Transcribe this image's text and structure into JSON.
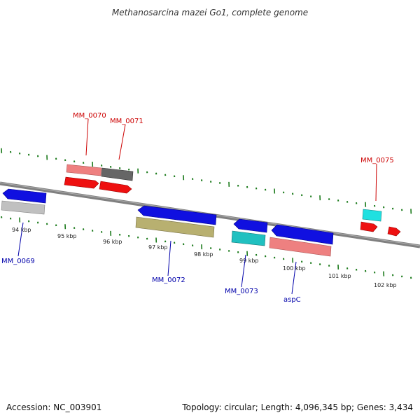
{
  "title": "Methanosarcina mazei Go1, complete genome",
  "footer": {
    "accession": "Accession: NC_003901",
    "summary": "Topology: circular; Length: 4,096,345 bp; Genes: 3,434"
  },
  "colors": {
    "backbone": "#808080",
    "ticks": "#1b7a1b",
    "forward_label": "#cc0000",
    "reverse_label": "#0000aa",
    "feature_blue": "#1010e0",
    "feature_red": "#ee1010",
    "feature_pink": "#ee8080",
    "feature_gray": "#c0c0c0",
    "feature_dark": "#666666",
    "feature_olive": "#b8b070",
    "feature_cyan": "#20c0c0"
  },
  "ruler": {
    "labels": [
      "94 kbp",
      "95 kbp",
      "96 kbp",
      "97 kbp",
      "98 kbp",
      "99 kbp",
      "100 kbp",
      "101 kbp",
      "102 kbp"
    ]
  },
  "genes": [
    {
      "label": "MM_0069",
      "strand": "reverse"
    },
    {
      "label": "MM_0070",
      "strand": "forward"
    },
    {
      "label": "MM_0071",
      "strand": "forward"
    },
    {
      "label": "MM_0072",
      "strand": "reverse"
    },
    {
      "label": "MM_0073",
      "strand": "reverse"
    },
    {
      "label": "aspC",
      "strand": "reverse"
    },
    {
      "label": "MM_0075",
      "strand": "forward"
    }
  ]
}
